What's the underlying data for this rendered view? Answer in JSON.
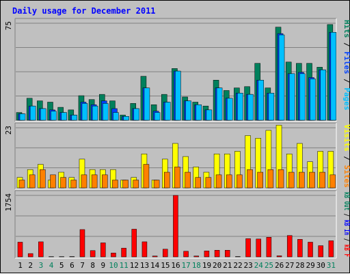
{
  "colors": {
    "frame_bg": "#c0c0c0",
    "panel_bg": "#c0c0c0",
    "title": "#0000ff",
    "hits": "#00805c",
    "files": "#0040ff",
    "pages": "#00c0ff",
    "visits": "#ffff00",
    "sites": "#ff8000",
    "kbf": "#ff0000",
    "kbin": "#0000ff",
    "kbout": "#00805c",
    "weekday": "#000000",
    "weekend": "#00805c"
  },
  "chart_data": [
    {
      "type": "bar",
      "title": "Daily usage for December 2011",
      "panel": "top",
      "y_max_label": "75",
      "ylim": [
        0,
        75
      ],
      "grid": true,
      "legend": [
        {
          "name": "Pages",
          "color": "#00c0ff"
        },
        {
          "name": "Files",
          "color": "#0040ff"
        },
        {
          "name": "Hits",
          "color": "#00805c"
        }
      ],
      "categories": [
        "1",
        "2",
        "3",
        "4",
        "5",
        "6",
        "7",
        "8",
        "9",
        "10",
        "11",
        "12",
        "13",
        "14",
        "15",
        "16",
        "17",
        "18",
        "19",
        "20",
        "21",
        "22",
        "23",
        "24",
        "25",
        "26",
        "27",
        "28",
        "29",
        "30",
        "31"
      ],
      "series": [
        {
          "name": "Hits",
          "values": [
            6,
            17,
            15,
            14,
            10,
            8,
            19,
            16,
            20,
            15,
            4,
            13,
            34,
            12,
            20,
            40,
            18,
            14,
            11,
            31,
            23,
            25,
            26,
            44,
            25,
            72,
            45,
            44,
            44,
            41,
            74
          ]
        },
        {
          "name": "Files",
          "values": [
            5,
            11,
            9,
            8,
            6,
            4,
            14,
            12,
            15,
            9,
            3,
            9,
            25,
            7,
            14,
            38,
            15,
            12,
            8,
            25,
            17,
            21,
            20,
            31,
            21,
            67,
            36,
            37,
            33,
            39,
            68
          ]
        },
        {
          "name": "Pages",
          "values": [
            5,
            11,
            9,
            7,
            6,
            4,
            13,
            11,
            13,
            6,
            3,
            9,
            25,
            6,
            14,
            38,
            15,
            12,
            8,
            25,
            17,
            21,
            20,
            31,
            21,
            66,
            36,
            36,
            32,
            39,
            68
          ]
        }
      ]
    },
    {
      "type": "bar",
      "panel": "middle",
      "y_max_label": "23",
      "ylim": [
        0,
        23
      ],
      "grid": true,
      "legend": [
        {
          "name": "Sites",
          "color": "#ff8000"
        },
        {
          "name": "Visits",
          "color": "#ffff00"
        }
      ],
      "categories": [
        "1",
        "2",
        "3",
        "4",
        "5",
        "6",
        "7",
        "8",
        "9",
        "10",
        "11",
        "12",
        "13",
        "14",
        "15",
        "16",
        "17",
        "18",
        "19",
        "20",
        "21",
        "22",
        "23",
        "24",
        "25",
        "26",
        "27",
        "28",
        "29",
        "30",
        "31"
      ],
      "series": [
        {
          "name": "Visits",
          "values": [
            4,
            7,
            9,
            3,
            6,
            4,
            11,
            7,
            7,
            7,
            3,
            4,
            13,
            3,
            11,
            17,
            12,
            8,
            6,
            13,
            13,
            14,
            20,
            19,
            22,
            24,
            13,
            17,
            10,
            14,
            14
          ]
        },
        {
          "name": "Sites",
          "values": [
            3,
            5,
            7,
            5,
            4,
            3,
            5,
            5,
            5,
            3,
            3,
            3,
            9,
            3,
            6,
            8,
            6,
            4,
            4,
            5,
            5,
            5,
            7,
            6,
            7,
            7,
            6,
            6,
            6,
            6,
            5
          ]
        }
      ]
    },
    {
      "type": "bar",
      "panel": "bottom",
      "y_max_label": "1754",
      "ylim": [
        0,
        1754
      ],
      "grid": true,
      "legend": [
        {
          "name": "kB F",
          "color": "#ff0000"
        },
        {
          "name": "kB In",
          "color": "#0000ff"
        },
        {
          "name": "kB Out",
          "color": "#00805c"
        }
      ],
      "categories": [
        "1",
        "2",
        "3",
        "4",
        "5",
        "6",
        "7",
        "8",
        "9",
        "10",
        "11",
        "12",
        "13",
        "14",
        "15",
        "16",
        "17",
        "18",
        "19",
        "20",
        "21",
        "22",
        "23",
        "24",
        "25",
        "26",
        "27",
        "28",
        "29",
        "30",
        "31"
      ],
      "series": [
        {
          "name": "kB F",
          "values": [
            420,
            95,
            430,
            8,
            8,
            10,
            780,
            180,
            400,
            110,
            250,
            790,
            430,
            25,
            220,
            1754,
            160,
            25,
            170,
            190,
            190,
            10,
            520,
            510,
            560,
            30,
            610,
            500,
            420,
            320,
            460
          ]
        }
      ]
    }
  ],
  "x_axis": {
    "labels": [
      "1",
      "2",
      "3",
      "4",
      "5",
      "6",
      "7",
      "8",
      "9",
      "10",
      "11",
      "12",
      "13",
      "14",
      "15",
      "16",
      "17",
      "18",
      "19",
      "20",
      "21",
      "22",
      "23",
      "24",
      "25",
      "26",
      "27",
      "28",
      "29",
      "30",
      "31"
    ],
    "weekend_days": [
      3,
      4,
      10,
      11,
      17,
      18,
      24,
      25,
      31
    ]
  }
}
